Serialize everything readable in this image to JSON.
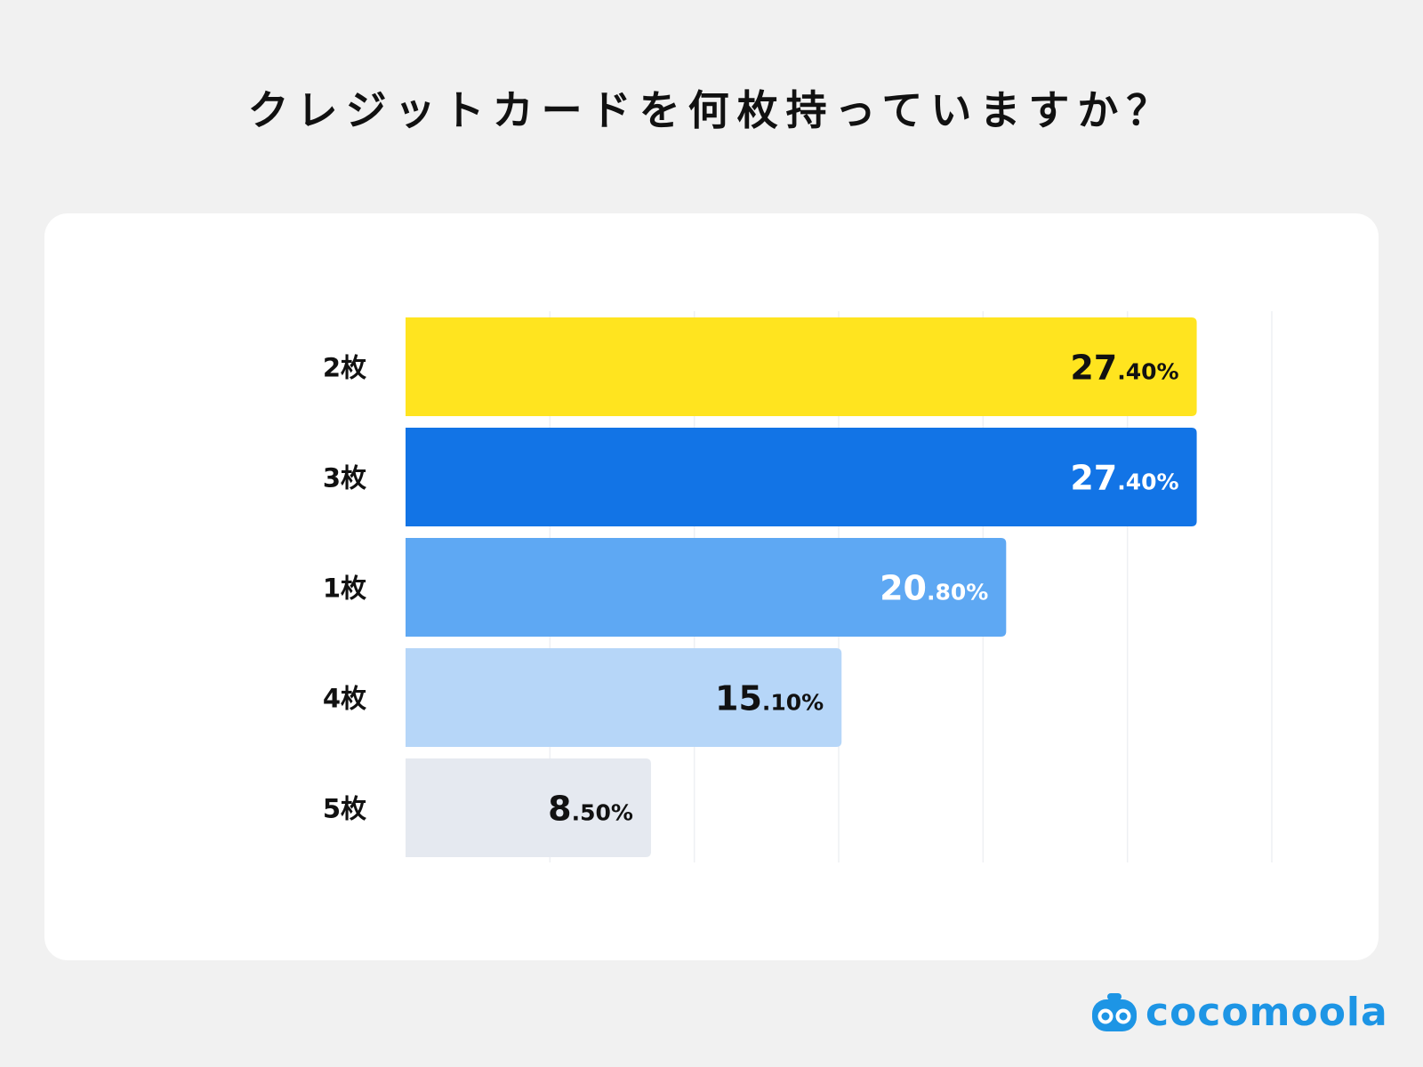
{
  "chart_data": {
    "type": "bar",
    "orientation": "horizontal",
    "title": "クレジットカードを何枚持っていますか？",
    "categories": [
      "2枚",
      "3枚",
      "1枚",
      "4枚",
      "5枚"
    ],
    "values": [
      27.4,
      27.4,
      20.8,
      15.1,
      8.5
    ],
    "value_labels": [
      {
        "int": "27",
        "dec": ".40%"
      },
      {
        "int": "27",
        "dec": ".40%"
      },
      {
        "int": "20",
        "dec": ".80%"
      },
      {
        "int": "15",
        "dec": ".10%"
      },
      {
        "int": "8",
        "dec": ".50%"
      }
    ],
    "colors": [
      "#ffe41f",
      "#1274e6",
      "#5ea8f3",
      "#b6d6f8",
      "#e5e9f0"
    ],
    "label_colors": [
      "#111111",
      "#ffffff",
      "#ffffff",
      "#111111",
      "#111111"
    ],
    "xlim": [
      0,
      30
    ],
    "grid": true,
    "xlabel": "",
    "ylabel": ""
  },
  "brand": {
    "name": "cocomoola",
    "color": "#1d95e5"
  }
}
